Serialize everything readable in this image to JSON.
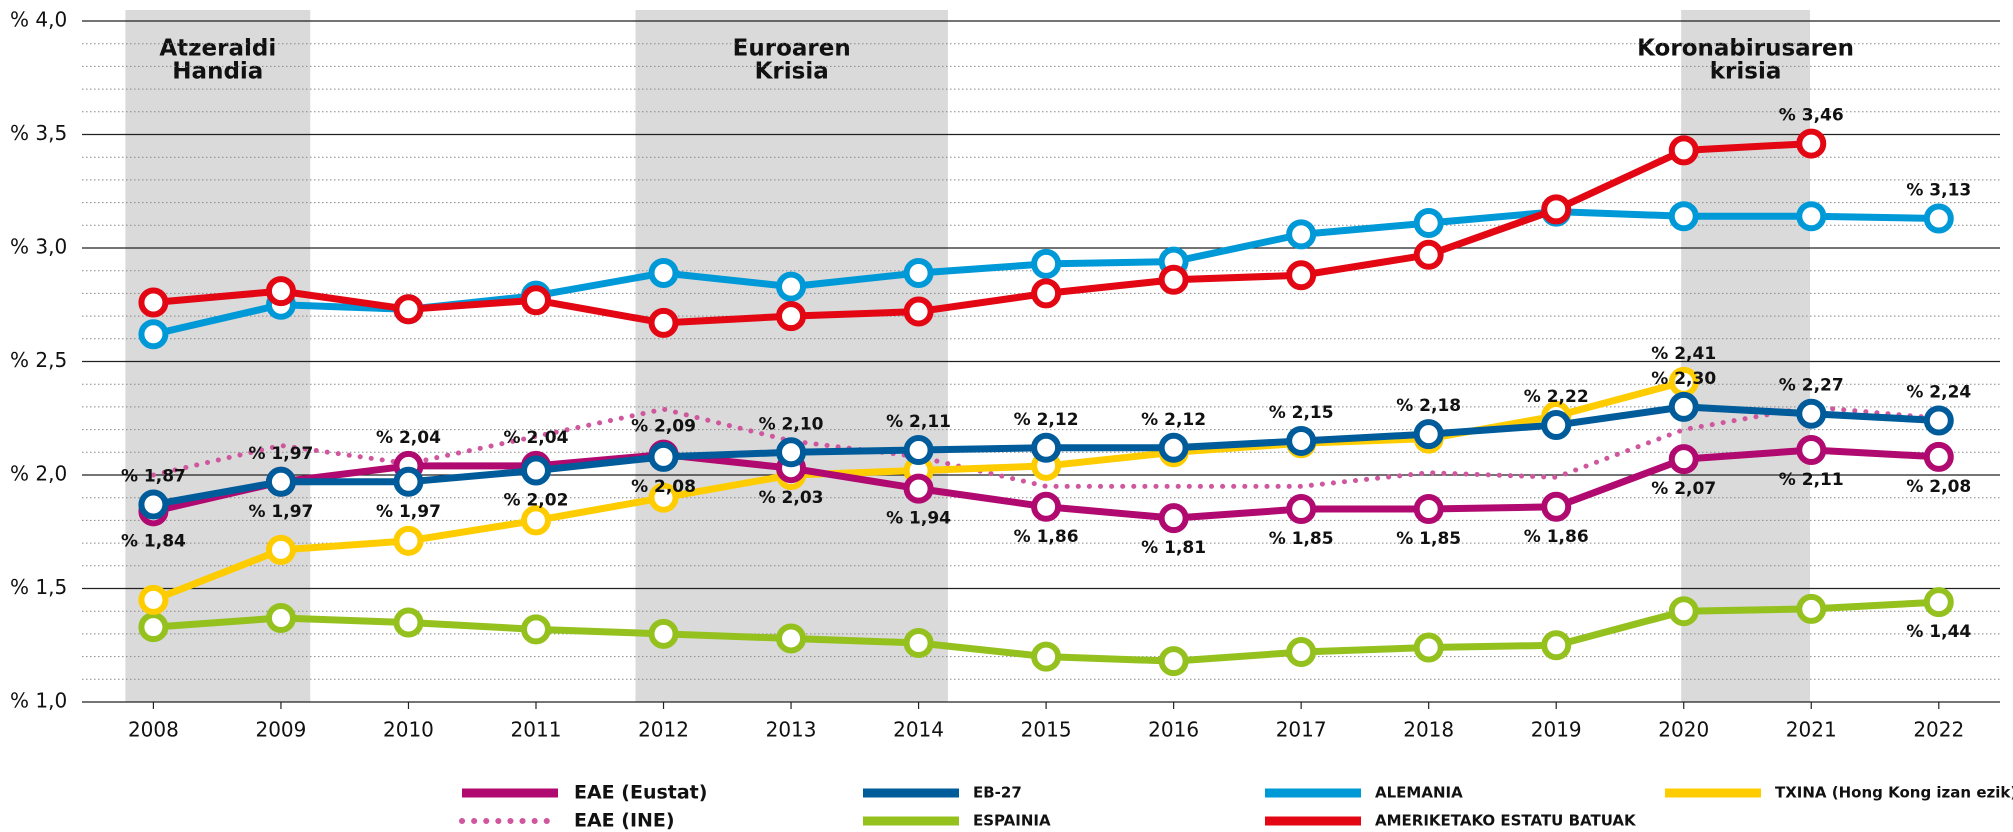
{
  "chart_data": {
    "type": "line",
    "x": [
      2008,
      2009,
      2010,
      2011,
      2012,
      2013,
      2014,
      2015,
      2016,
      2017,
      2018,
      2019,
      2020,
      2021,
      2022
    ],
    "xlim": [
      2007.44,
      2022.48
    ],
    "xticks": [
      2008,
      2009,
      2010,
      2011,
      2012,
      2013,
      2014,
      2015,
      2016,
      2017,
      2018,
      2019,
      2020,
      2021,
      2022
    ],
    "ylim": [
      1.0,
      4.0
    ],
    "yticks": [
      {
        "value": 1.0,
        "label": "% 1,0"
      },
      {
        "value": 1.5,
        "label": "% 1,5"
      },
      {
        "value": 2.0,
        "label": "% 2,0"
      },
      {
        "value": 2.5,
        "label": "% 2,5"
      },
      {
        "value": 3.0,
        "label": "% 3,0"
      },
      {
        "value": 3.5,
        "label": "% 3,5"
      },
      {
        "value": 4.0,
        "label": "% 4,0"
      }
    ],
    "yminor": [
      1.1,
      1.2,
      1.3,
      1.4,
      1.6,
      1.7,
      1.8,
      1.9,
      2.1,
      2.2,
      2.3,
      2.4,
      2.6,
      2.7,
      2.8,
      2.9,
      3.1,
      3.2,
      3.3,
      3.4,
      3.6,
      3.7,
      3.8,
      3.9
    ],
    "grid": true,
    "shaded_periods": [
      {
        "label": [
          "Atzeraldi",
          "Handia"
        ],
        "x": [
          2007.78,
          2009.23
        ]
      },
      {
        "label": [
          "Euroaren",
          "Krisia"
        ],
        "x": [
          2011.78,
          2014.23
        ]
      },
      {
        "label": [
          "Koronabirusaren",
          "krisia"
        ],
        "x": [
          2019.98,
          2020.99
        ]
      }
    ],
    "series": [
      {
        "name": "EAE (Eustat)",
        "color": "#b0096f",
        "style": "solid",
        "markers": true,
        "values": [
          1.84,
          1.97,
          2.04,
          2.04,
          2.09,
          2.03,
          1.94,
          1.86,
          1.81,
          1.85,
          1.85,
          1.86,
          2.07,
          2.11,
          2.08
        ],
        "value_labels": [
          "% 1,84",
          "% 1,97",
          "% 2,04",
          "% 2,04",
          "% 2,09",
          "% 2,03",
          "% 1,94",
          "% 1,86",
          "% 1,81",
          "% 1,85",
          "% 1,85",
          "% 1,86",
          "% 2,07",
          "% 2,11",
          "% 2,08"
        ]
      },
      {
        "name": "EAE (INE)",
        "color": "#d0569e",
        "style": "dotted",
        "markers": false,
        "values": [
          2.0,
          2.13,
          2.05,
          2.17,
          2.29,
          2.15,
          2.08,
          1.95,
          1.95,
          1.95,
          2.01,
          1.99,
          2.2,
          2.3,
          2.25
        ]
      },
      {
        "name": "EB-27",
        "color": "#005b9a",
        "style": "solid",
        "markers": true,
        "values": [
          1.87,
          1.97,
          1.97,
          2.02,
          2.08,
          2.1,
          2.11,
          2.12,
          2.12,
          2.15,
          2.18,
          2.22,
          2.3,
          2.27,
          2.24
        ],
        "value_labels": [
          "% 1,87",
          "% 1,97",
          "% 1,97",
          "% 2,02",
          "% 2,08",
          "% 2,10",
          "% 2,11",
          "% 2,12",
          "% 2,12",
          "% 2,15",
          "% 2,18",
          "% 2,22",
          "% 2,30",
          "% 2,27",
          "% 2,24"
        ]
      },
      {
        "name": "ESPAINIA",
        "color": "#95c11f",
        "style": "solid",
        "markers": true,
        "values": [
          1.33,
          1.37,
          1.35,
          1.32,
          1.3,
          1.28,
          1.26,
          1.2,
          1.18,
          1.22,
          1.24,
          1.25,
          1.4,
          1.41,
          1.44
        ],
        "value_labels": [
          null,
          null,
          null,
          null,
          null,
          null,
          null,
          null,
          null,
          null,
          null,
          null,
          null,
          null,
          "% 1,44"
        ]
      },
      {
        "name": "ALEMANIA",
        "color": "#0099d8",
        "style": "solid",
        "markers": true,
        "values": [
          2.62,
          2.75,
          2.73,
          2.79,
          2.89,
          2.83,
          2.89,
          2.93,
          2.94,
          3.06,
          3.11,
          3.16,
          3.14,
          3.14,
          3.13
        ],
        "value_labels": [
          null,
          null,
          null,
          null,
          null,
          null,
          null,
          null,
          null,
          null,
          null,
          null,
          null,
          null,
          "% 3,13"
        ]
      },
      {
        "name": "AMERIKETAKO ESTATU BATUAK",
        "color": "#e30613",
        "style": "solid",
        "markers": true,
        "values": [
          2.76,
          2.81,
          2.73,
          2.77,
          2.67,
          2.7,
          2.72,
          2.8,
          2.86,
          2.88,
          2.97,
          3.17,
          3.43,
          3.46,
          null
        ],
        "value_labels": [
          null,
          null,
          null,
          null,
          null,
          null,
          null,
          null,
          null,
          null,
          null,
          null,
          null,
          "% 3,46",
          null
        ]
      },
      {
        "name": "TXINA (Hong Kong izan ezik)",
        "color": "#ffcc00",
        "style": "solid",
        "markers": true,
        "values": [
          1.45,
          1.67,
          1.71,
          1.8,
          1.9,
          2.0,
          2.02,
          2.04,
          2.1,
          2.14,
          2.16,
          2.26,
          2.41,
          null,
          null
        ],
        "value_labels": [
          null,
          null,
          null,
          null,
          null,
          null,
          null,
          null,
          null,
          null,
          null,
          null,
          "% 2,41",
          null,
          null
        ]
      }
    ]
  }
}
